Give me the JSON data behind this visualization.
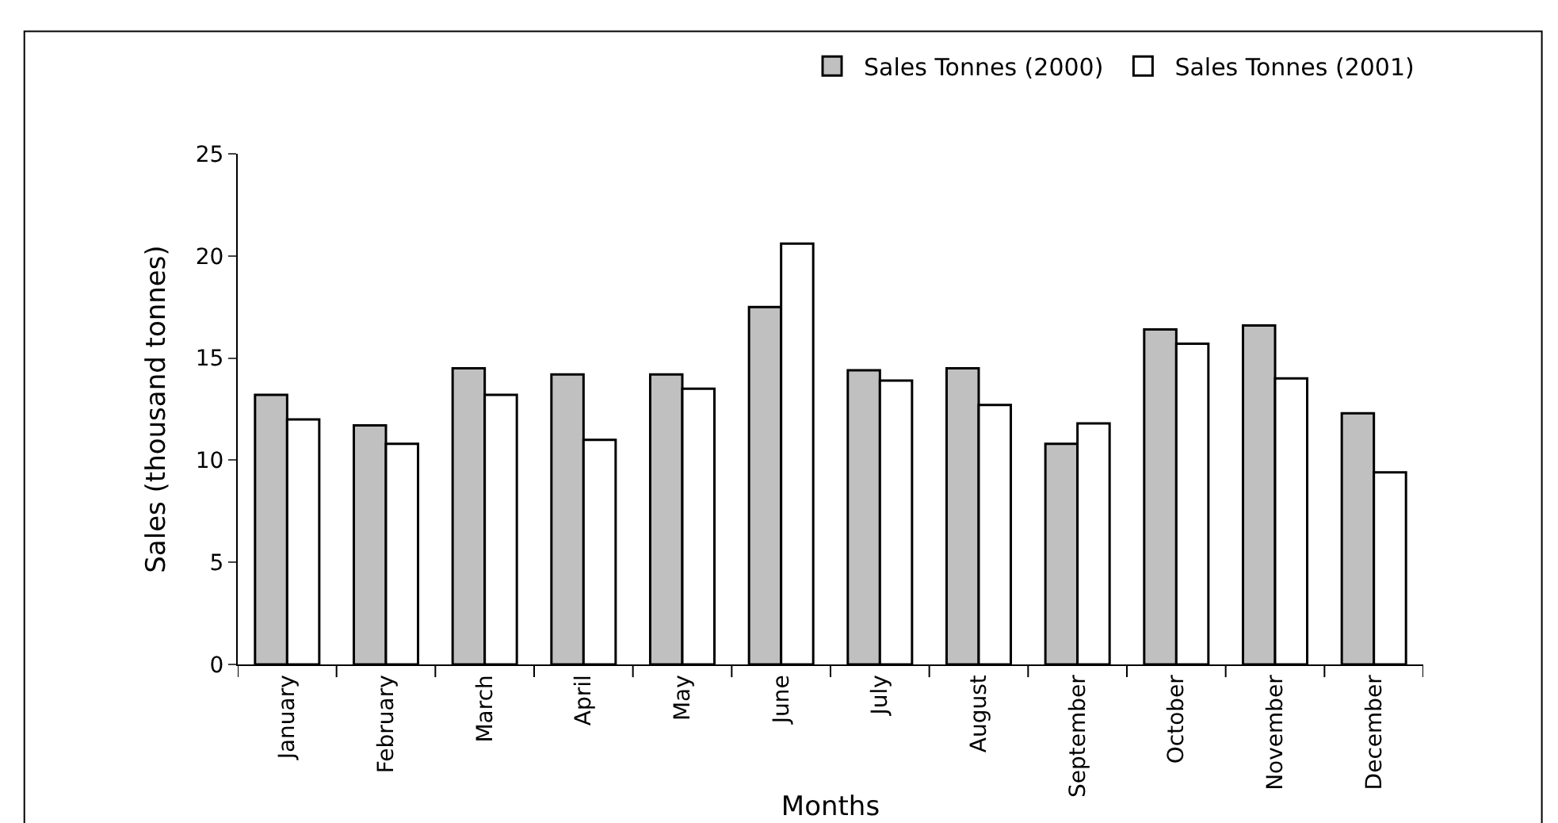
{
  "chart_data": {
    "type": "bar",
    "xlabel": "Months",
    "ylabel": "Sales (thousand tonnes)",
    "categories": [
      "January",
      "February",
      "March",
      "April",
      "May",
      "June",
      "July",
      "August",
      "September",
      "October",
      "November",
      "December"
    ],
    "series": [
      {
        "name": "Sales Tonnes (2000)",
        "color": "#c0c0c0",
        "values": [
          13.2,
          11.7,
          14.5,
          14.2,
          14.2,
          17.5,
          14.4,
          14.5,
          10.8,
          16.4,
          16.6,
          12.3
        ]
      },
      {
        "name": "Sales Tonnes (2001)",
        "color": "#ffffff",
        "values": [
          12.0,
          10.8,
          13.2,
          11.0,
          13.5,
          20.6,
          13.9,
          12.7,
          11.8,
          15.7,
          14.0,
          9.4
        ]
      }
    ],
    "ylim": [
      0,
      25
    ],
    "yticks": [
      0,
      5,
      10,
      15,
      20,
      25
    ],
    "legend": "top right"
  }
}
